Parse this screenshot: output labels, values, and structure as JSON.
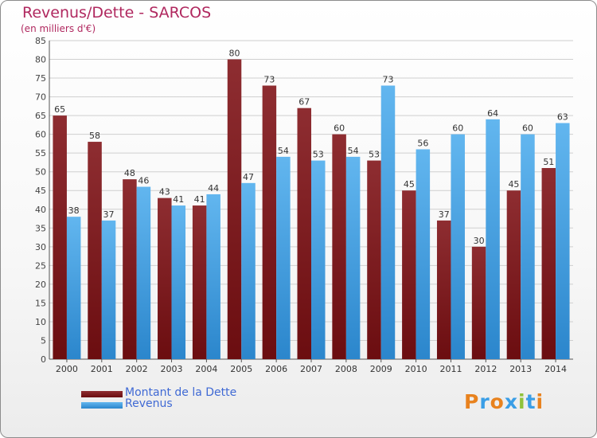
{
  "title": "Revenus/Dette - SARCOS",
  "subtitle": "(en milliers d'€)",
  "colors": {
    "dette": "#6b0d10",
    "revenus": "#3a9ee6",
    "title": "#b0285f",
    "legend_text": "#3f69d4"
  },
  "logo": {
    "text": "Proxiti"
  },
  "chart_data": {
    "type": "bar",
    "title": "Revenus/Dette - SARCOS",
    "subtitle": "(en milliers d'€)",
    "categories": [
      "2000",
      "2001",
      "2002",
      "2003",
      "2004",
      "2005",
      "2006",
      "2007",
      "2008",
      "2009",
      "2010",
      "2011",
      "2012",
      "2013",
      "2014"
    ],
    "series": [
      {
        "name": "Montant de la Dette",
        "values": [
          65,
          58,
          48,
          43,
          41,
          80,
          73,
          67,
          60,
          53,
          45,
          37,
          30,
          45,
          51
        ]
      },
      {
        "name": "Revenus",
        "values": [
          38,
          37,
          46,
          41,
          44,
          47,
          54,
          53,
          54,
          73,
          56,
          60,
          64,
          60,
          63
        ]
      }
    ],
    "ylim": [
      0,
      85
    ],
    "yticks": [
      0,
      5,
      10,
      15,
      20,
      25,
      30,
      35,
      40,
      45,
      50,
      55,
      60,
      65,
      70,
      75,
      80,
      85
    ],
    "grid": true,
    "legend_position": "bottom-left"
  }
}
